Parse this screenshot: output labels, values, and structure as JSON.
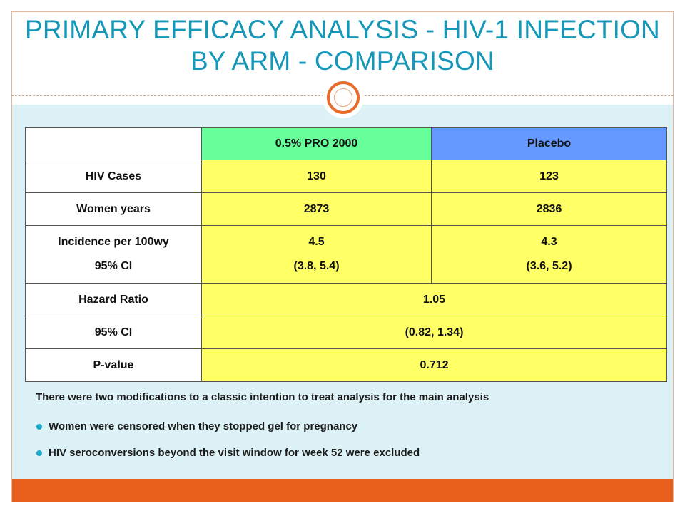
{
  "slide": {
    "title_line1": "PRIMARY EFFICACY ANALYSIS - HIV-1 INFECTION",
    "title_line2": "BY ARM - COMPARISON"
  },
  "table": {
    "headers": [
      "",
      "0.5% PRO 2000",
      "Placebo"
    ],
    "rows": [
      {
        "label": "HIV Cases",
        "pro2000": "130",
        "placebo": "123"
      },
      {
        "label": "Women years",
        "pro2000": "2873",
        "placebo": "2836"
      },
      {
        "label_line1": "Incidence per 100wy",
        "label_line2": "95% CI",
        "pro2000_line1": "4.5",
        "pro2000_line2": "(3.8, 5.4)",
        "placebo_line1": "4.3",
        "placebo_line2": "(3.6, 5.2)"
      },
      {
        "label": "Hazard Ratio",
        "value": "1.05"
      },
      {
        "label": "95% CI",
        "value": "(0.82, 1.34)"
      },
      {
        "label": "P-value",
        "value": "0.712"
      }
    ]
  },
  "notes": {
    "intro": "There were two modifications to a classic intention to treat analysis for the main analysis",
    "bullets": [
      "Women were censored when they stopped gel for pregnancy",
      "HIV seroconversions beyond the visit window for week 52 were excluded"
    ]
  },
  "colors": {
    "title": "#1597b8",
    "header_pro2000": "#66ff99",
    "header_placebo": "#6699ff",
    "data_cells": "#ffff66",
    "content_background": "#dcf2f7",
    "accent_orange": "#e8601c",
    "bullet": "#1aa6c9"
  }
}
